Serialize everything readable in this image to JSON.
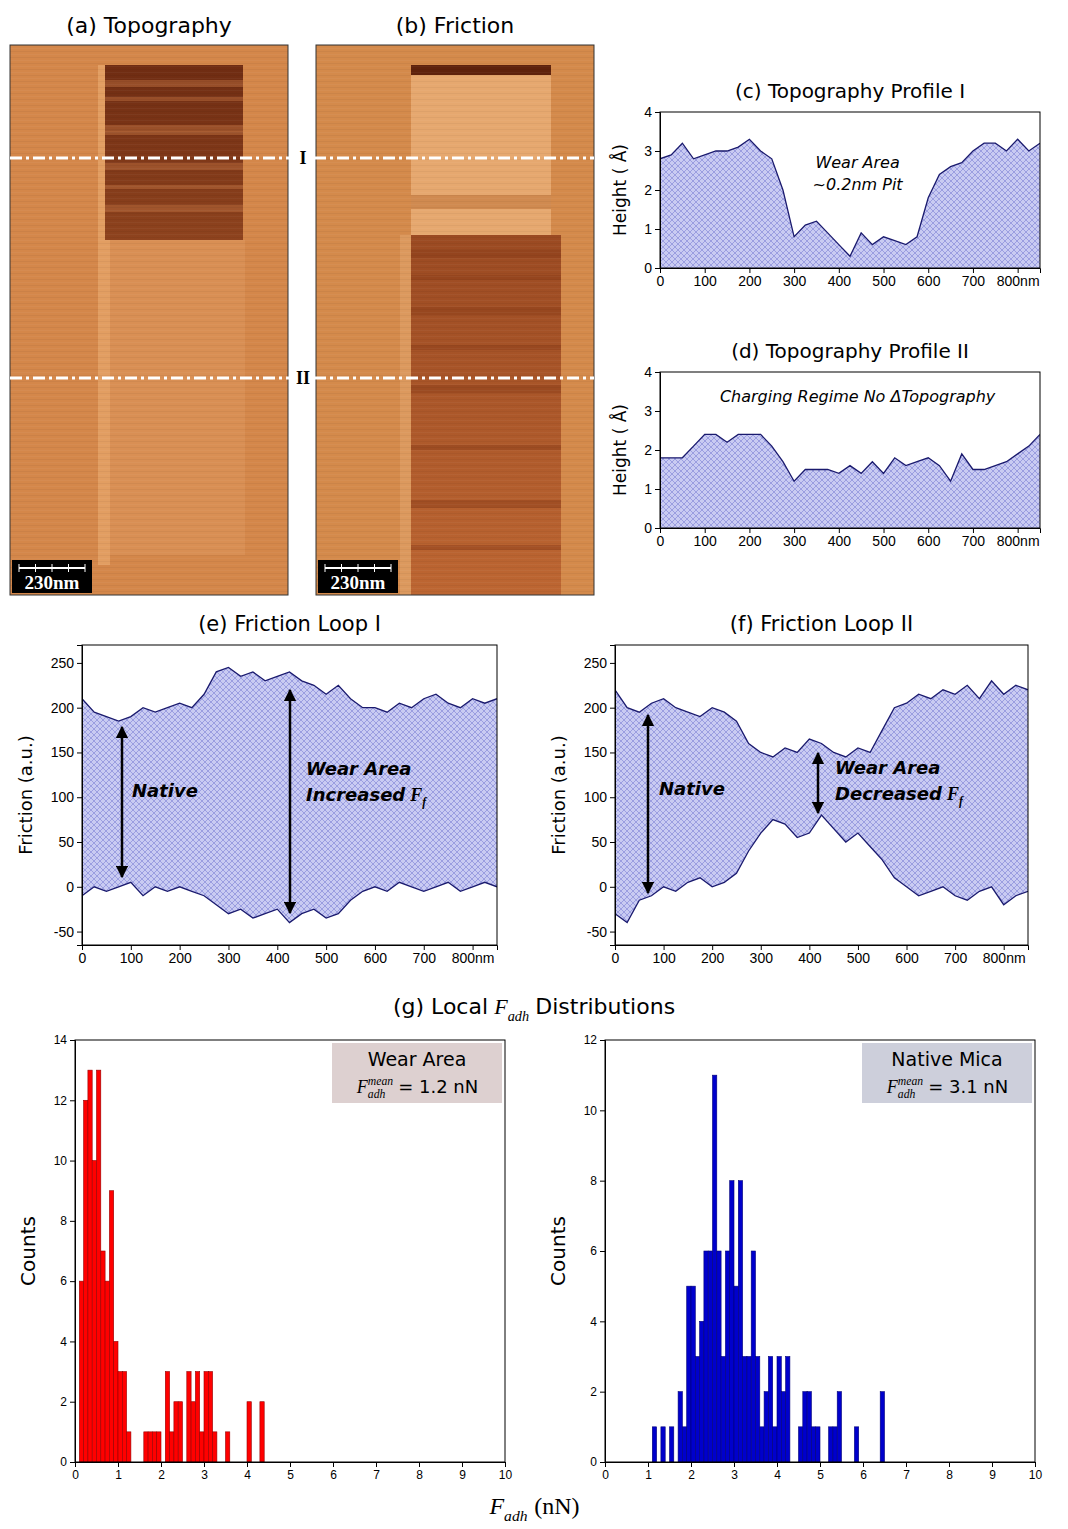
{
  "images": [
    {
      "title": "(a) Topography",
      "scale_bar": "230nm"
    },
    {
      "title": "(b) Friction",
      "scale_bar": "230nm"
    }
  ],
  "profile_markers": [
    "I",
    "II"
  ],
  "g_title": {
    "prefix": "(g) Local",
    "symbol": "F",
    "sub": "adh",
    "suffix": "Distributions"
  },
  "g_xlabel": {
    "symbol": "F",
    "sub": "adh",
    "suffix": "(nN)"
  },
  "chart_data": [
    {
      "type": "area",
      "title": "(c) Topography Profile I",
      "y_label": "Height ( Å)",
      "color": "#1a1a6e",
      "x": [
        0,
        25,
        50,
        75,
        100,
        125,
        150,
        175,
        200,
        225,
        250,
        275,
        300,
        325,
        350,
        375,
        400,
        425,
        450,
        475,
        500,
        525,
        550,
        575,
        600,
        625,
        650,
        675,
        700,
        725,
        750,
        775,
        800,
        825,
        850
      ],
      "values": [
        2.8,
        2.9,
        3.2,
        2.8,
        2.9,
        3,
        3,
        3.1,
        3.3,
        3,
        2.8,
        2,
        0.8,
        1.1,
        1.2,
        0.9,
        0.6,
        0.3,
        0.9,
        0.6,
        0.8,
        0.7,
        0.6,
        0.8,
        1.8,
        2.4,
        2.6,
        2.7,
        3,
        3.2,
        3.2,
        3,
        3.3,
        3,
        3.2
      ],
      "xlim": [
        0,
        850
      ],
      "ylim": [
        0,
        4
      ],
      "xticks": [
        0,
        100,
        200,
        300,
        400,
        500,
        600,
        700,
        {
          "value": 800,
          "label": "800nm"
        }
      ],
      "yticks": [
        0,
        1,
        2,
        3,
        4
      ],
      "annotations": [
        {
          "lines": [
            "Wear Area",
            "~0.2nm Pit"
          ]
        }
      ]
    },
    {
      "type": "area",
      "title": "(d) Topography Profile II",
      "y_label": "Height ( Å)",
      "color": "#1a1a6e",
      "x": [
        0,
        25,
        50,
        75,
        100,
        125,
        150,
        175,
        200,
        225,
        250,
        275,
        300,
        325,
        350,
        375,
        400,
        425,
        450,
        475,
        500,
        525,
        550,
        575,
        600,
        625,
        650,
        675,
        700,
        725,
        750,
        775,
        800,
        825,
        850
      ],
      "values": [
        1.8,
        1.8,
        1.8,
        2.1,
        2.4,
        2.4,
        2.2,
        2.4,
        2.4,
        2.4,
        2.1,
        1.7,
        1.2,
        1.5,
        1.5,
        1.5,
        1.4,
        1.6,
        1.4,
        1.7,
        1.4,
        1.8,
        1.6,
        1.7,
        1.8,
        1.6,
        1.2,
        1.9,
        1.5,
        1.5,
        1.6,
        1.7,
        1.9,
        2.1,
        2.4
      ],
      "xlim": [
        0,
        850
      ],
      "ylim": [
        0,
        4
      ],
      "xticks": [
        0,
        100,
        200,
        300,
        400,
        500,
        600,
        700,
        {
          "value": 800,
          "label": "800nm"
        }
      ],
      "yticks": [
        0,
        1,
        2,
        3,
        4
      ],
      "annotations": [
        {
          "lines": [
            "Charging Regime No ΔTopography"
          ]
        }
      ]
    },
    {
      "type": "line",
      "title": "(e) Friction Loop I",
      "y_label": "Friction (a.u.)",
      "x": [
        0,
        25,
        50,
        75,
        100,
        125,
        150,
        175,
        200,
        225,
        250,
        275,
        300,
        325,
        350,
        375,
        400,
        425,
        450,
        475,
        500,
        525,
        550,
        575,
        600,
        625,
        650,
        675,
        700,
        725,
        750,
        775,
        800,
        825,
        850
      ],
      "series": [
        {
          "color": "#1a1a6e",
          "values": [
            210,
            195,
            190,
            185,
            190,
            200,
            195,
            200,
            205,
            200,
            215,
            240,
            245,
            235,
            240,
            230,
            235,
            240,
            230,
            225,
            215,
            225,
            210,
            200,
            200,
            195,
            205,
            200,
            210,
            215,
            205,
            200,
            210,
            205,
            210
          ]
        },
        {
          "color": "#1a1a6e",
          "values": [
            -10,
            0,
            -5,
            0,
            5,
            -10,
            0,
            -5,
            0,
            -5,
            -10,
            -20,
            -30,
            -25,
            -35,
            -30,
            -25,
            -40,
            -30,
            -25,
            -35,
            -30,
            -15,
            -5,
            0,
            -5,
            5,
            0,
            -5,
            0,
            5,
            -5,
            0,
            5,
            0
          ]
        }
      ],
      "xlim": [
        0,
        850
      ],
      "ylim": [
        -65,
        270
      ],
      "xticks": [
        0,
        100,
        200,
        300,
        400,
        500,
        600,
        700,
        {
          "value": 800,
          "label": "800nm"
        }
      ],
      "yticks": [
        -50,
        0,
        50,
        100,
        150,
        200,
        250
      ],
      "annotations": [
        {
          "lines": [
            "Native"
          ]
        },
        {
          "lines": [
            "Wear Area",
            "Increased"
          ],
          "symbol": "F",
          "sub": "f"
        }
      ]
    },
    {
      "type": "line",
      "title": "(f) Friction Loop II",
      "y_label": "Friction (a.u.)",
      "x": [
        0,
        25,
        50,
        75,
        100,
        125,
        150,
        175,
        200,
        225,
        250,
        275,
        300,
        325,
        350,
        375,
        400,
        425,
        450,
        475,
        500,
        525,
        550,
        575,
        600,
        625,
        650,
        675,
        700,
        725,
        750,
        775,
        800,
        825,
        850
      ],
      "series": [
        {
          "color": "#1a1a6e",
          "values": [
            220,
            200,
            195,
            205,
            210,
            200,
            195,
            190,
            200,
            195,
            185,
            160,
            150,
            145,
            155,
            150,
            165,
            160,
            150,
            145,
            155,
            150,
            175,
            200,
            205,
            215,
            210,
            220,
            215,
            225,
            210,
            230,
            215,
            225,
            220
          ]
        },
        {
          "color": "#1a1a6e",
          "values": [
            -30,
            -40,
            -15,
            -10,
            0,
            -5,
            5,
            10,
            0,
            5,
            15,
            40,
            60,
            75,
            70,
            55,
            60,
            80,
            65,
            50,
            60,
            45,
            30,
            10,
            0,
            -10,
            -5,
            0,
            -10,
            -15,
            -5,
            0,
            -20,
            -10,
            -5
          ]
        }
      ],
      "xlim": [
        0,
        850
      ],
      "ylim": [
        -65,
        270
      ],
      "xticks": [
        0,
        100,
        200,
        300,
        400,
        500,
        600,
        700,
        {
          "value": 800,
          "label": "800nm"
        }
      ],
      "yticks": [
        -50,
        0,
        50,
        100,
        150,
        200,
        250
      ],
      "annotations": [
        {
          "lines": [
            "Native"
          ]
        },
        {
          "lines": [
            "Wear Area",
            "Decreased"
          ],
          "symbol": "F",
          "sub": "f"
        }
      ]
    },
    {
      "type": "histogram",
      "y_label": "Counts",
      "color": "#ff0000",
      "bins": [
        0,
        0.1,
        0.2,
        0.3,
        0.4,
        0.5,
        0.6,
        0.7,
        0.8,
        0.9,
        1,
        1.1,
        1.2,
        1.3,
        1.4,
        1.5,
        1.6,
        1.7,
        1.8,
        1.9,
        2,
        2.1,
        2.2,
        2.3,
        2.4,
        2.5,
        2.6,
        2.7,
        2.8,
        2.9,
        3,
        3.1,
        3.2,
        3.3,
        3.4,
        3.5,
        3.6,
        3.7,
        3.8,
        3.9,
        4,
        4.1,
        4.2,
        4.3,
        4.4,
        4.5
      ],
      "values": [
        0,
        6,
        12,
        13,
        10,
        13,
        7,
        6,
        9,
        4,
        3,
        3,
        1,
        0,
        0,
        0,
        1,
        1,
        1,
        1,
        0,
        3,
        1,
        2,
        2,
        0,
        3,
        2,
        3,
        1,
        3,
        3,
        1,
        0,
        0,
        1,
        0,
        0,
        0,
        0,
        2,
        0,
        0,
        2,
        0
      ],
      "xlim": [
        0,
        10
      ],
      "ylim": [
        0,
        14
      ],
      "xticks": [
        0,
        1,
        2,
        3,
        4,
        5,
        6,
        7,
        8,
        9,
        10
      ],
      "yticks": [
        0,
        2,
        4,
        6,
        8,
        10,
        12,
        14
      ],
      "inset": {
        "title": "Wear Area",
        "symbol": "F",
        "sub": "adh",
        "sup": "mean",
        "text": "= 1.2 nN"
      }
    },
    {
      "type": "histogram",
      "y_label": "Counts",
      "color": "#0000cc",
      "bins": [
        1.1,
        1.2,
        1.3,
        1.4,
        1.5,
        1.6,
        1.7,
        1.8,
        1.9,
        2,
        2.1,
        2.2,
        2.3,
        2.4,
        2.5,
        2.6,
        2.7,
        2.8,
        2.9,
        3,
        3.1,
        3.2,
        3.3,
        3.4,
        3.5,
        3.6,
        3.7,
        3.8,
        3.9,
        4,
        4.1,
        4.2,
        4.3,
        4.4,
        4.5,
        4.6,
        4.7,
        4.8,
        4.9,
        5,
        5.1,
        5.2,
        5.3,
        5.4,
        5.5,
        5.6,
        5.7,
        5.8,
        5.9,
        6,
        6.1,
        6.2,
        6.3,
        6.4,
        6.5
      ],
      "values": [
        1,
        0,
        1,
        0,
        1,
        0,
        2,
        1,
        5,
        5,
        3,
        4,
        6,
        6,
        11,
        6,
        3,
        6,
        8,
        5,
        8,
        3,
        3,
        6,
        3,
        1,
        2,
        3,
        1,
        3,
        2,
        3,
        0,
        0,
        1,
        2,
        2,
        1,
        1,
        0,
        0,
        1,
        1,
        2,
        0,
        0,
        0,
        1,
        0,
        0,
        0,
        0,
        0,
        2
      ],
      "xlim": [
        0,
        10
      ],
      "ylim": [
        0,
        12
      ],
      "xticks": [
        0,
        1,
        2,
        3,
        4,
        5,
        6,
        7,
        8,
        9,
        10
      ],
      "yticks": [
        0,
        2,
        4,
        6,
        8,
        10,
        12
      ],
      "inset": {
        "title": "Native Mica",
        "symbol": "F",
        "sub": "adh",
        "sup": "mean",
        "text": "= 3.1 nN"
      }
    }
  ]
}
